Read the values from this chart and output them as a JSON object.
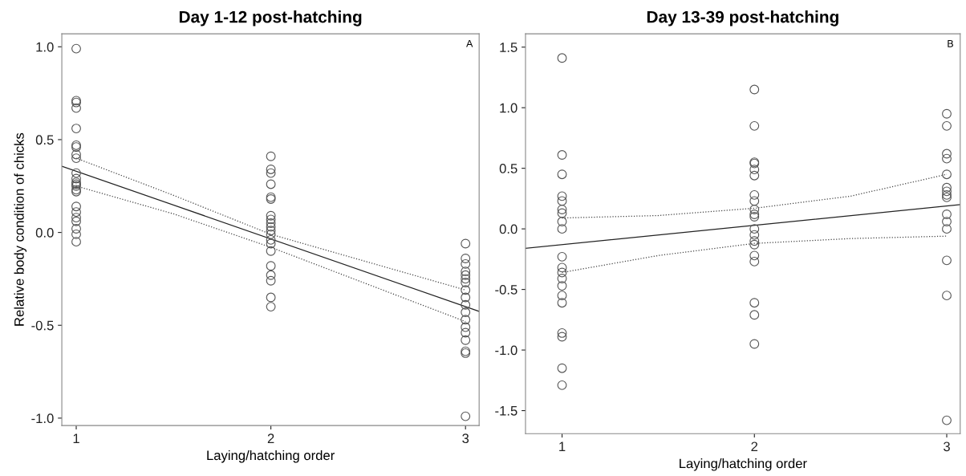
{
  "chart_data": [
    {
      "type": "scatter",
      "title": "Day 1-12 post-hatching",
      "xlabel": "Laying/hatching order",
      "ylabel": "Relative body condition of chicks",
      "annotations": [
        "A"
      ],
      "xlim": [
        0.926,
        3.07
      ],
      "ylim": [
        -1.04,
        1.07
      ],
      "xticks": [
        1,
        2,
        3
      ],
      "yticks": [
        {
          "value": -1.0,
          "label": "-1.0"
        },
        {
          "value": -0.5,
          "label": "-0.5"
        },
        {
          "value": 0.0,
          "label": "0.0"
        },
        {
          "value": 0.5,
          "label": "0.5"
        },
        {
          "value": 1.0,
          "label": "1.0"
        }
      ],
      "grid": false,
      "legend": false,
      "series": [
        {
          "marker": "circle",
          "color": "#555555",
          "x": [
            1,
            1,
            1,
            1,
            1,
            1,
            1,
            1,
            1,
            1,
            1,
            1,
            1,
            1,
            1,
            1,
            1,
            1,
            1,
            1,
            1,
            1,
            1,
            2,
            2,
            2,
            2,
            2,
            2,
            2,
            2,
            2,
            2,
            2,
            2,
            2,
            2,
            2,
            2,
            2,
            2,
            2,
            2,
            3,
            3,
            3,
            3,
            3,
            3,
            3,
            3,
            3,
            3,
            3,
            3,
            3,
            3,
            3,
            3,
            3,
            3
          ],
          "values": [
            0.99,
            0.71,
            0.7,
            0.67,
            0.56,
            0.47,
            0.46,
            0.42,
            0.4,
            0.32,
            0.29,
            0.27,
            0.26,
            0.25,
            0.23,
            0.22,
            0.14,
            0.11,
            0.08,
            0.06,
            0.02,
            -0.01,
            -0.05,
            0.41,
            0.34,
            0.32,
            0.26,
            0.19,
            0.18,
            0.09,
            0.07,
            0.05,
            0.03,
            0.01,
            -0.01,
            -0.04,
            -0.06,
            -0.1,
            -0.18,
            -0.23,
            -0.26,
            -0.35,
            -0.4,
            -0.06,
            -0.14,
            -0.17,
            -0.21,
            -0.23,
            -0.25,
            -0.27,
            -0.31,
            -0.35,
            -0.39,
            -0.43,
            -0.47,
            -0.51,
            -0.54,
            -0.58,
            -0.64,
            -0.65,
            -0.99
          ]
        },
        {
          "type": "line",
          "color": "#222222",
          "line_style": "solid",
          "x": [
            0.926,
            3.07
          ],
          "values": [
            0.357,
            -0.425
          ]
        },
        {
          "type": "line",
          "color": "#444444",
          "line_style": "dotted",
          "x": [
            1,
            1.5,
            2,
            2.5,
            3
          ],
          "values": [
            0.4,
            0.2,
            -0.01,
            -0.16,
            -0.31
          ]
        },
        {
          "type": "line",
          "color": "#444444",
          "line_style": "dotted",
          "x": [
            1,
            1.5,
            2,
            2.5,
            3
          ],
          "values": [
            0.25,
            0.1,
            -0.08,
            -0.28,
            -0.48
          ]
        }
      ]
    },
    {
      "type": "scatter",
      "title": "Day 13-39 post-hatching",
      "xlabel": "Laying/hatching order",
      "annotations": [
        "B"
      ],
      "xlim": [
        0.81,
        3.07
      ],
      "ylim": [
        -1.69,
        1.61
      ],
      "xticks": [
        1,
        2,
        3
      ],
      "yticks": [
        {
          "value": -1.5,
          "label": "-1.5"
        },
        {
          "value": -1.0,
          "label": "-1.0"
        },
        {
          "value": -0.5,
          "label": "-0.5"
        },
        {
          "value": 0.0,
          "label": "0.0"
        },
        {
          "value": 0.5,
          "label": "0.5"
        },
        {
          "value": 1.0,
          "label": "1.0"
        },
        {
          "value": 1.5,
          "label": "1.5"
        }
      ],
      "grid": false,
      "legend": false,
      "series": [
        {
          "marker": "circle",
          "color": "#555555",
          "x": [
            1,
            1,
            1,
            1,
            1,
            1,
            1,
            1,
            1,
            1,
            1,
            1,
            1,
            1,
            1,
            1,
            1,
            1,
            1,
            1,
            2,
            2,
            2,
            2,
            2,
            2,
            2,
            2,
            2,
            2,
            2,
            2,
            2,
            2,
            2,
            2,
            2,
            2,
            2,
            2,
            3,
            3,
            3,
            3,
            3,
            3,
            3,
            3,
            3,
            3,
            3,
            3,
            3,
            3,
            3
          ],
          "values": [
            1.41,
            0.61,
            0.45,
            0.27,
            0.23,
            0.16,
            0.13,
            0.06,
            0.0,
            -0.23,
            -0.32,
            -0.36,
            -0.41,
            -0.47,
            -0.55,
            -0.61,
            -0.86,
            -0.89,
            -1.15,
            -1.29,
            1.15,
            0.85,
            0.55,
            0.54,
            0.49,
            0.44,
            0.28,
            0.23,
            0.16,
            0.12,
            0.1,
            0.0,
            -0.05,
            -0.1,
            -0.13,
            -0.22,
            -0.27,
            -0.61,
            -0.71,
            -0.95,
            0.95,
            0.85,
            0.62,
            0.58,
            0.45,
            0.34,
            0.31,
            0.28,
            0.26,
            0.12,
            0.06,
            0.0,
            -0.26,
            -0.55,
            -1.58
          ]
        },
        {
          "type": "line",
          "color": "#222222",
          "line_style": "solid",
          "x": [
            0.81,
            3.07
          ],
          "values": [
            -0.16,
            0.2
          ]
        },
        {
          "type": "line",
          "color": "#444444",
          "line_style": "dotted",
          "x": [
            1,
            1.5,
            2,
            2.5,
            3
          ],
          "values": [
            0.09,
            0.11,
            0.17,
            0.27,
            0.45
          ]
        },
        {
          "type": "line",
          "color": "#444444",
          "line_style": "dotted",
          "x": [
            1,
            1.5,
            2,
            2.5,
            3
          ],
          "values": [
            -0.36,
            -0.22,
            -0.12,
            -0.08,
            -0.06
          ]
        }
      ]
    }
  ]
}
